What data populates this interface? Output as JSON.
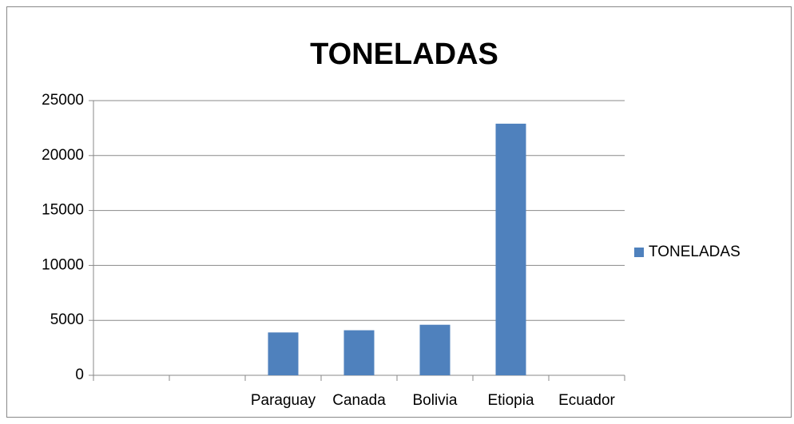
{
  "chart_data": {
    "type": "bar",
    "title": "TONELADAS",
    "categories": [
      null,
      null,
      "Paraguay",
      "Canada",
      "Bolivia",
      "Etiopia",
      "Ecuador"
    ],
    "series": [
      {
        "name": "TONELADAS",
        "color": "#4f81bd",
        "values": [
          null,
          null,
          3900,
          4100,
          4600,
          22900,
          0
        ]
      }
    ],
    "ylim": [
      0,
      25000
    ],
    "yticks": [
      0,
      5000,
      10000,
      15000,
      20000,
      25000
    ],
    "grid": true,
    "legend": "right"
  }
}
